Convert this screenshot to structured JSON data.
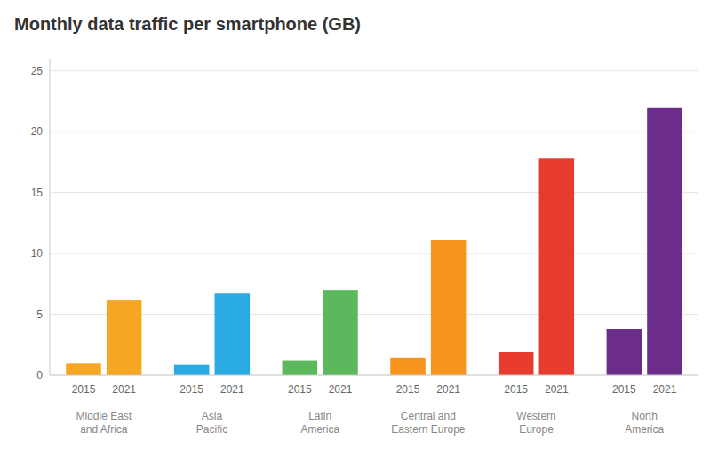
{
  "chart_data": {
    "type": "bar",
    "title": "Monthly data traffic per smartphone (GB)",
    "categories": [
      "Middle East\nand Africa",
      "Asia\nPacific",
      "Latin\nAmerica",
      "Central and\nEastern Europe",
      "Western\nEurope",
      "North\nAmerica"
    ],
    "series": [
      {
        "name": "2015",
        "values": [
          1.0,
          0.9,
          1.2,
          1.4,
          1.9,
          3.8
        ],
        "colors": [
          "#F5A623",
          "#29ABE2",
          "#5CB85C",
          "#F7941D",
          "#E63B2E",
          "#6B2C8B"
        ]
      },
      {
        "name": "2021",
        "values": [
          6.2,
          6.7,
          7.0,
          11.1,
          17.8,
          22.0
        ],
        "colors": [
          "#F5A623",
          "#29ABE2",
          "#5CB85C",
          "#F7941D",
          "#E63B2E",
          "#6B2C8B"
        ]
      }
    ],
    "ylim": [
      0,
      26
    ],
    "yticks": [
      0,
      5,
      10,
      15,
      20,
      25
    ],
    "grid": true
  }
}
